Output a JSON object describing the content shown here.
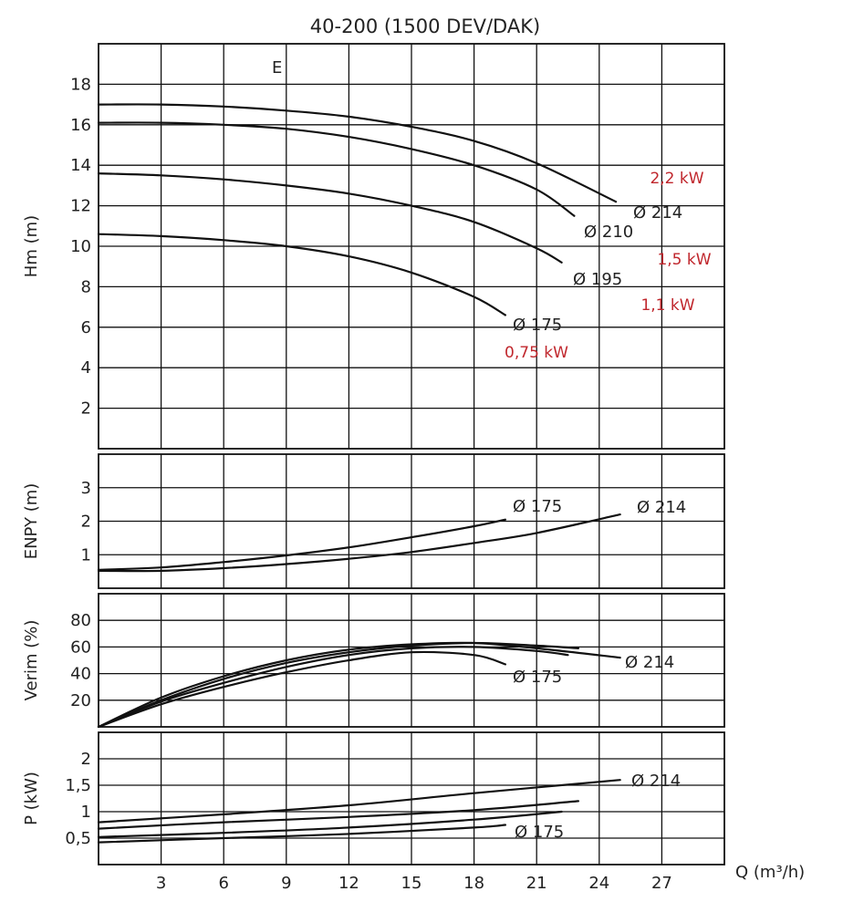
{
  "chart_data": {
    "title": "40-200 (1500 DEV/DAK)",
    "type": "line",
    "xlabel": "Q (m³/h)",
    "x_ticks": [
      "3",
      "6",
      "9",
      "12",
      "15",
      "18",
      "21",
      "24",
      "27"
    ],
    "xlim": [
      0,
      30
    ],
    "grid": true,
    "panels": [
      {
        "id": "hm",
        "ylabel": "Hm (m)",
        "ylim": [
          0,
          20
        ],
        "y_ticks": [
          "2",
          "4",
          "6",
          "8",
          "10",
          "12",
          "14",
          "16",
          "18"
        ],
        "annotation": "E",
        "series": [
          {
            "name": "Ø 214",
            "x": [
              0,
              3,
              6,
              9,
              12,
              15,
              18,
              21,
              24.8
            ],
            "y": [
              17,
              17,
              16.9,
              16.7,
              16.4,
              15.9,
              15.2,
              14.1,
              12.2
            ]
          },
          {
            "name": "Ø 210",
            "x": [
              0,
              3,
              6,
              9,
              12,
              15,
              18,
              21,
              22.8
            ],
            "y": [
              16.1,
              16.1,
              16,
              15.8,
              15.4,
              14.8,
              14,
              12.8,
              11.5
            ]
          },
          {
            "name": "Ø 195",
            "x": [
              0,
              3,
              6,
              9,
              12,
              15,
              18,
              21,
              22.2
            ],
            "y": [
              13.6,
              13.5,
              13.3,
              13,
              12.6,
              12,
              11.2,
              9.9,
              9.2
            ]
          },
          {
            "name": "Ø 175",
            "x": [
              0,
              3,
              6,
              9,
              12,
              15,
              18,
              19.5
            ],
            "y": [
              10.6,
              10.5,
              10.3,
              10,
              9.5,
              8.7,
              7.5,
              6.6
            ]
          }
        ],
        "power_labels": [
          "2,2 kW",
          "1,5 kW",
          "1,1 kW",
          "0,75 kW"
        ],
        "power_color": "#c0272d"
      },
      {
        "id": "enpy",
        "ylabel": "ENPY (m)",
        "ylim": [
          0,
          4
        ],
        "y_ticks": [
          "1",
          "2",
          "3"
        ],
        "series": [
          {
            "name": "Ø 175",
            "x": [
              0,
              3,
              6,
              9,
              12,
              15,
              18,
              19.5
            ],
            "y": [
              0.55,
              0.62,
              0.78,
              0.98,
              1.22,
              1.52,
              1.85,
              2.05
            ]
          },
          {
            "name": "Ø 214",
            "x": [
              0,
              3,
              6,
              9,
              12,
              15,
              18,
              21,
              25
            ],
            "y": [
              0.52,
              0.52,
              0.6,
              0.72,
              0.88,
              1.08,
              1.35,
              1.65,
              2.2
            ]
          }
        ]
      },
      {
        "id": "verim",
        "ylabel": "Verim (%)",
        "ylim": [
          0,
          100
        ],
        "y_ticks": [
          "20",
          "40",
          "60",
          "80"
        ],
        "series": [
          {
            "name": "Ø 214",
            "x": [
              0,
              3,
              6,
              9,
              12,
              15,
              18,
              21,
              25
            ],
            "y": [
              0,
              22,
              38,
              50,
              58,
              62,
              63,
              59,
              52
            ]
          },
          {
            "name": "",
            "x": [
              0,
              3,
              6,
              9,
              12,
              15,
              18,
              21,
              23
            ],
            "y": [
              0,
              20,
              36,
              48,
              56,
              61,
              63,
              61,
              59
            ]
          },
          {
            "name": "",
            "x": [
              0,
              3,
              6,
              9,
              12,
              15,
              18,
              21,
              22.5
            ],
            "y": [
              0,
              19,
              33,
              45,
              54,
              59,
              60,
              57,
              54
            ]
          },
          {
            "name": "Ø 175",
            "x": [
              0,
              3,
              6,
              9,
              12,
              15,
              18,
              19.5
            ],
            "y": [
              0,
              17,
              30,
              41,
              50,
              56,
              54,
              47
            ]
          }
        ]
      },
      {
        "id": "power",
        "ylabel": "P (kW)",
        "ylim": [
          0,
          2.5
        ],
        "y_ticks": [
          "0,5",
          "1",
          "1,5",
          "2"
        ],
        "series": [
          {
            "name": "Ø 214",
            "x": [
              0,
              6,
              12,
              18,
              25
            ],
            "y": [
              0.8,
              0.95,
              1.12,
              1.35,
              1.6
            ]
          },
          {
            "name": "",
            "x": [
              0,
              6,
              12,
              18,
              23
            ],
            "y": [
              0.68,
              0.8,
              0.9,
              1.03,
              1.2
            ]
          },
          {
            "name": "",
            "x": [
              0,
              6,
              12,
              18,
              22.2
            ],
            "y": [
              0.52,
              0.6,
              0.7,
              0.85,
              1.0
            ]
          },
          {
            "name": "Ø 175",
            "x": [
              0,
              6,
              12,
              18,
              19.5
            ],
            "y": [
              0.42,
              0.5,
              0.58,
              0.7,
              0.75
            ]
          }
        ]
      }
    ]
  }
}
